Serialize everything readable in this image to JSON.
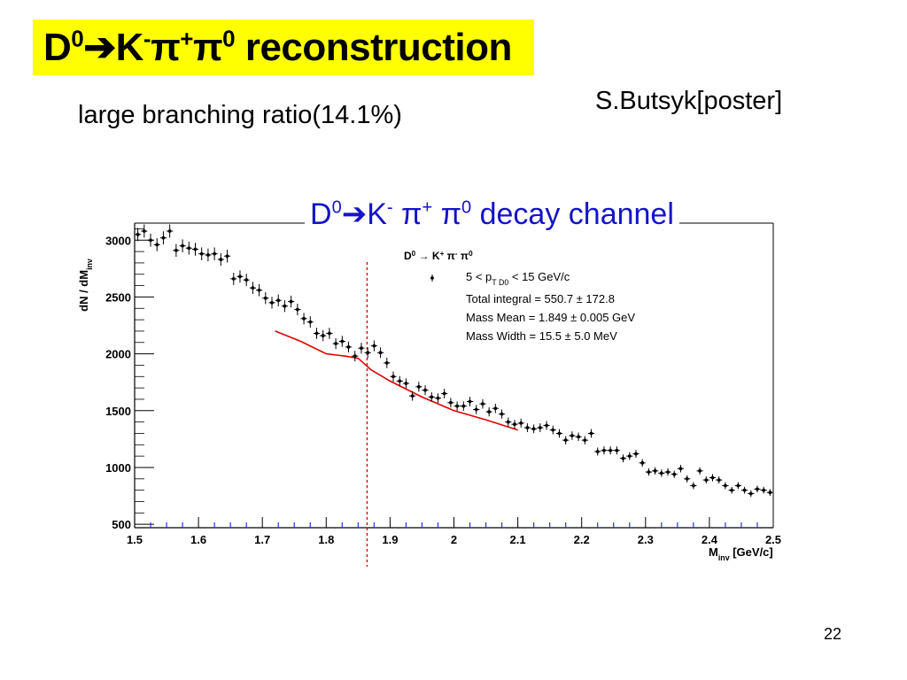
{
  "slide": {
    "title": {
      "D": "D",
      "sup0": "0",
      "arrow": "➔",
      "K": "K",
      "supminus": "-",
      "pi1": "π",
      "supplus": "+",
      "pi2": "π",
      "sup0b": "0",
      "word": " reconstruction"
    },
    "subtitle": "large branching ratio(14.1%)",
    "author": "S.Butsyk[poster]",
    "channel_title": {
      "D": "D",
      "sup0": "0",
      "arrow": "➔",
      "K": "K",
      "supminus": "-",
      "pi1": " π",
      "supplus": "+",
      "pi2": " π",
      "sup0b": "0",
      "word": " decay channel"
    },
    "page_number": "22"
  },
  "colors": {
    "title_bg": "#ffff00",
    "channel_title": "#1414c8",
    "fit_line": "#e00000",
    "marker_line": "#e00000",
    "axis_ticks": "#2233dd"
  },
  "chart_data": {
    "type": "scatter",
    "ylabel": "dN / dM",
    "ylabel_sub": "inv",
    "xlabel": "M",
    "xlabel_sub": "inv",
    "xlabel_unit": " [GeV/c]",
    "xlim": [
      1.5,
      2.5
    ],
    "ylim": [
      470,
      3150
    ],
    "xticks": [
      1.5,
      1.6,
      1.7,
      1.8,
      1.9,
      2.0,
      2.1,
      2.2,
      2.3,
      2.4,
      2.5
    ],
    "xtick_labels": [
      "1.5",
      "1.6",
      "1.7",
      "1.8",
      "1.9",
      "2",
      "2.1",
      "2.2",
      "2.3",
      "2.4",
      "2.5"
    ],
    "yticks": [
      500,
      1000,
      1500,
      2000,
      2500,
      3000
    ],
    "ytick_labels": [
      "500",
      "1000",
      "1500",
      "2000",
      "2500",
      "3000"
    ],
    "legend": {
      "position": "top-right",
      "title_parts": [
        "D",
        "0",
        " → K",
        "+",
        " π",
        "-",
        " π",
        "0"
      ],
      "pt_line": [
        "5 < p",
        "T D",
        "0",
        " < 15 GeV/c"
      ],
      "lines": [
        "Total integral = 550.7 ± 172.8",
        "Mass Mean = 1.849 ± 0.005 GeV",
        "Mass Width = 15.5 ± 5.0 MeV"
      ]
    },
    "marker_x": 1.864,
    "data_points": {
      "x": [
        1.505,
        1.515,
        1.525,
        1.535,
        1.545,
        1.555,
        1.565,
        1.575,
        1.585,
        1.595,
        1.605,
        1.615,
        1.625,
        1.635,
        1.645,
        1.655,
        1.665,
        1.675,
        1.685,
        1.695,
        1.705,
        1.715,
        1.725,
        1.735,
        1.745,
        1.755,
        1.765,
        1.775,
        1.785,
        1.795,
        1.805,
        1.815,
        1.825,
        1.835,
        1.845,
        1.855,
        1.865,
        1.875,
        1.885,
        1.895,
        1.905,
        1.915,
        1.925,
        1.935,
        1.945,
        1.955,
        1.965,
        1.975,
        1.985,
        1.995,
        2.005,
        2.015,
        2.025,
        2.035,
        2.045,
        2.055,
        2.065,
        2.075,
        2.085,
        2.095,
        2.105,
        2.115,
        2.125,
        2.135,
        2.145,
        2.155,
        2.165,
        2.175,
        2.185,
        2.195,
        2.205,
        2.215,
        2.225,
        2.235,
        2.245,
        2.255,
        2.265,
        2.275,
        2.285,
        2.295,
        2.305,
        2.315,
        2.325,
        2.335,
        2.345,
        2.355,
        2.365,
        2.375,
        2.385,
        2.395,
        2.405,
        2.415,
        2.425,
        2.435,
        2.445,
        2.455,
        2.465,
        2.475,
        2.485,
        2.495
      ],
      "y": [
        3050,
        3080,
        3000,
        2960,
        3020,
        3080,
        2910,
        2950,
        2930,
        2920,
        2880,
        2870,
        2880,
        2830,
        2860,
        2660,
        2680,
        2650,
        2580,
        2560,
        2490,
        2450,
        2470,
        2420,
        2460,
        2390,
        2310,
        2280,
        2180,
        2160,
        2180,
        2090,
        2110,
        2060,
        1980,
        2050,
        2010,
        2070,
        2010,
        1920,
        1800,
        1760,
        1740,
        1630,
        1710,
        1680,
        1620,
        1610,
        1650,
        1570,
        1540,
        1540,
        1580,
        1510,
        1560,
        1490,
        1520,
        1470,
        1400,
        1380,
        1390,
        1350,
        1340,
        1350,
        1370,
        1330,
        1300,
        1240,
        1280,
        1270,
        1240,
        1300,
        1140,
        1150,
        1150,
        1150,
        1080,
        1100,
        1120,
        1040,
        960,
        970,
        950,
        960,
        940,
        990,
        900,
        840,
        970,
        890,
        910,
        890,
        840,
        800,
        840,
        800,
        770,
        810,
        800,
        780
      ]
    },
    "fit": {
      "x": [
        1.72,
        1.76,
        1.8,
        1.83,
        1.85,
        1.87,
        1.9,
        1.95,
        2.0,
        2.05,
        2.1
      ],
      "y": [
        2200,
        2110,
        2000,
        1980,
        1960,
        1860,
        1760,
        1620,
        1500,
        1420,
        1330
      ]
    }
  }
}
